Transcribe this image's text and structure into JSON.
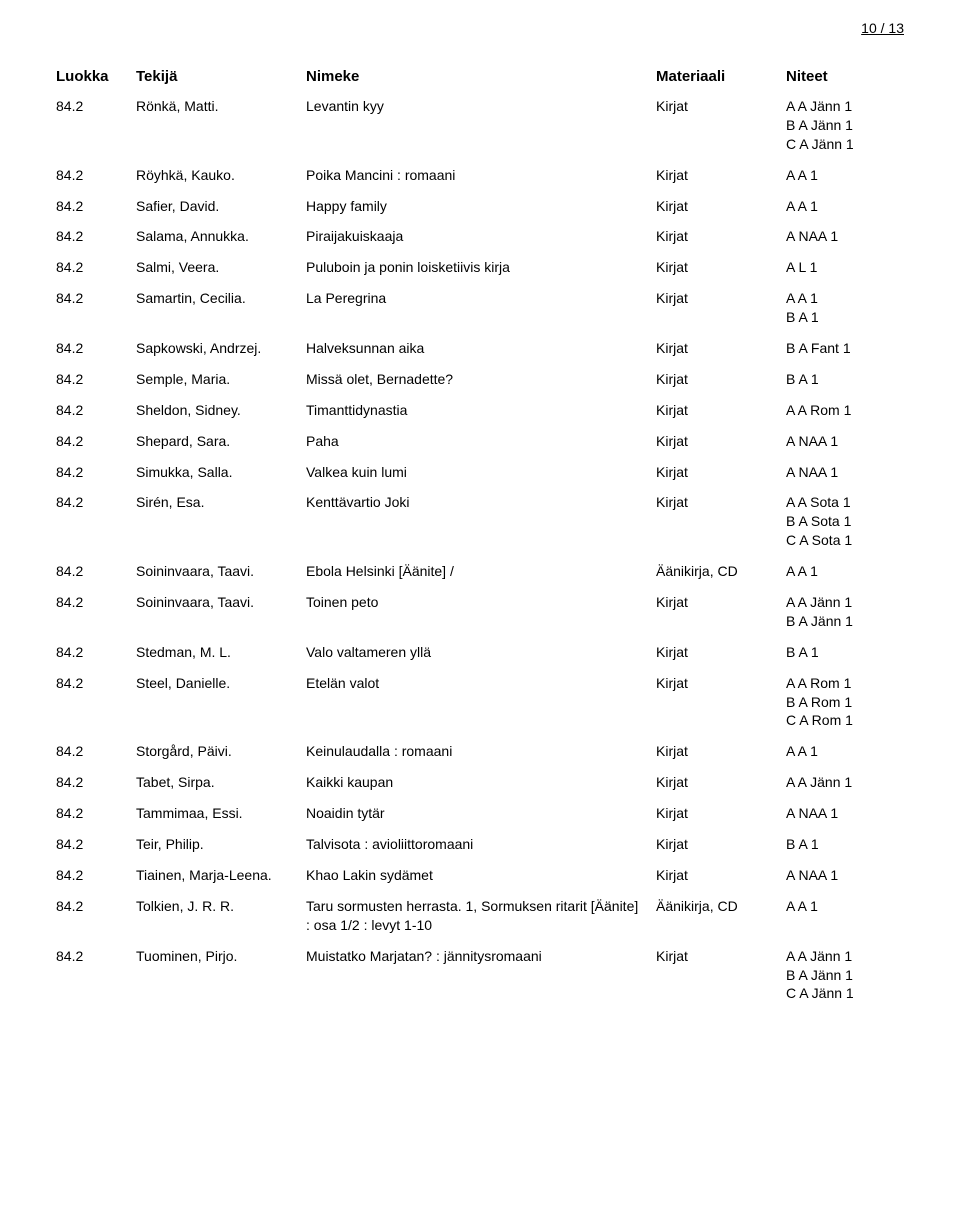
{
  "page_number": "10 / 13",
  "headers": {
    "luokka": "Luokka",
    "tekija": "Tekijä",
    "nimeke": "Nimeke",
    "materiaali": "Materiaali",
    "niteet": "Niteet"
  },
  "rows": [
    {
      "luokka": "84.2",
      "tekija": "Rönkä, Matti.",
      "nimeke": "Levantin kyy",
      "materiaali": "Kirjat",
      "niteet": [
        "A A Jänn 1",
        "B A Jänn 1",
        "C A Jänn 1"
      ]
    },
    {
      "luokka": "84.2",
      "tekija": "Röyhkä, Kauko.",
      "nimeke": "Poika Mancini : romaani",
      "materiaali": "Kirjat",
      "niteet": [
        "A A 1"
      ]
    },
    {
      "luokka": "84.2",
      "tekija": "Safier, David.",
      "nimeke": "Happy family",
      "materiaali": "Kirjat",
      "niteet": [
        "A A 1"
      ]
    },
    {
      "luokka": "84.2",
      "tekija": "Salama, Annukka.",
      "nimeke": "Piraijakuiskaaja",
      "materiaali": "Kirjat",
      "niteet": [
        "A NAA 1"
      ]
    },
    {
      "luokka": "84.2",
      "tekija": "Salmi, Veera.",
      "nimeke": "Puluboin ja ponin loisketiivis kirja",
      "materiaali": "Kirjat",
      "niteet": [
        "A L 1"
      ]
    },
    {
      "luokka": "84.2",
      "tekija": "Samartin, Cecilia.",
      "nimeke": "La Peregrina",
      "materiaali": "Kirjat",
      "niteet": [
        "A A 1",
        "B A 1"
      ]
    },
    {
      "luokka": "84.2",
      "tekija": "Sapkowski, Andrzej.",
      "nimeke": "Halveksunnan aika",
      "materiaali": "Kirjat",
      "niteet": [
        "B A Fant 1"
      ]
    },
    {
      "luokka": "84.2",
      "tekija": "Semple, Maria.",
      "nimeke": "Missä olet, Bernadette?",
      "materiaali": "Kirjat",
      "niteet": [
        "B A 1"
      ]
    },
    {
      "luokka": "84.2",
      "tekija": "Sheldon, Sidney.",
      "nimeke": "Timanttidynastia",
      "materiaali": "Kirjat",
      "niteet": [
        "A A Rom 1"
      ]
    },
    {
      "luokka": "84.2",
      "tekija": "Shepard, Sara.",
      "nimeke": "Paha",
      "materiaali": "Kirjat",
      "niteet": [
        "A NAA 1"
      ]
    },
    {
      "luokka": "84.2",
      "tekija": "Simukka, Salla.",
      "nimeke": "Valkea kuin lumi",
      "materiaali": "Kirjat",
      "niteet": [
        "A NAA 1"
      ]
    },
    {
      "luokka": "84.2",
      "tekija": "Sirén, Esa.",
      "nimeke": "Kenttävartio Joki",
      "materiaali": "Kirjat",
      "niteet": [
        "A A Sota 1",
        "B A Sota 1",
        "C A Sota 1"
      ]
    },
    {
      "luokka": "84.2",
      "tekija": "Soininvaara, Taavi.",
      "nimeke": "Ebola Helsinki [Äänite] /",
      "materiaali": "Äänikirja, CD",
      "niteet": [
        "A A 1"
      ]
    },
    {
      "luokka": "84.2",
      "tekija": "Soininvaara, Taavi.",
      "nimeke": "Toinen peto",
      "materiaali": "Kirjat",
      "niteet": [
        "A A Jänn 1",
        "B A Jänn 1"
      ]
    },
    {
      "luokka": "84.2",
      "tekija": "Stedman, M. L.",
      "nimeke": "Valo valtameren yllä",
      "materiaali": "Kirjat",
      "niteet": [
        "B A 1"
      ]
    },
    {
      "luokka": "84.2",
      "tekija": "Steel, Danielle.",
      "nimeke": "Etelän valot",
      "materiaali": "Kirjat",
      "niteet": [
        "A A Rom 1",
        "B A Rom 1",
        "C A Rom 1"
      ]
    },
    {
      "luokka": "84.2",
      "tekija": "Storgård, Päivi.",
      "nimeke": "Keinulaudalla : romaani",
      "materiaali": "Kirjat",
      "niteet": [
        "A A 1"
      ]
    },
    {
      "luokka": "84.2",
      "tekija": "Tabet, Sirpa.",
      "nimeke": "Kaikki kaupan",
      "materiaali": "Kirjat",
      "niteet": [
        "A A Jänn 1"
      ]
    },
    {
      "luokka": "84.2",
      "tekija": "Tammimaa, Essi.",
      "nimeke": "Noaidin tytär",
      "materiaali": "Kirjat",
      "niteet": [
        "A NAA 1"
      ]
    },
    {
      "luokka": "84.2",
      "tekija": "Teir, Philip.",
      "nimeke": "Talvisota : avioliittoromaani",
      "materiaali": "Kirjat",
      "niteet": [
        "B A 1"
      ]
    },
    {
      "luokka": "84.2",
      "tekija": "Tiainen, Marja-Leena.",
      "nimeke": "Khao Lakin sydämet",
      "materiaali": "Kirjat",
      "niteet": [
        "A NAA 1"
      ]
    },
    {
      "luokka": "84.2",
      "tekija": "Tolkien, J. R. R.",
      "nimeke": "Taru sormusten herrasta. 1, Sormuksen ritarit [Äänite] : osa 1/2 : levyt 1-10",
      "materiaali": "Äänikirja, CD",
      "niteet": [
        "A A 1"
      ]
    },
    {
      "luokka": "84.2",
      "tekija": "Tuominen, Pirjo.",
      "nimeke": "Muistatko Marjatan? : jännitysromaani",
      "materiaali": "Kirjat",
      "niteet": [
        "A A Jänn 1",
        "B A Jänn 1",
        "C A Jänn 1"
      ]
    }
  ]
}
